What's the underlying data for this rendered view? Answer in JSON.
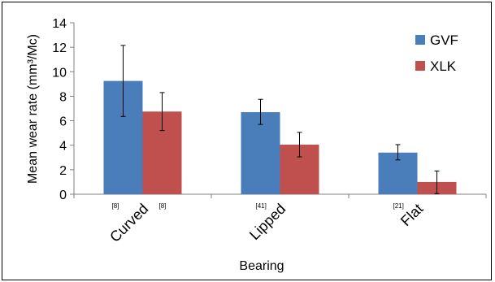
{
  "chart_data": {
    "type": "bar",
    "title": "",
    "xlabel": "Bearing",
    "ylabel": "Mean wear rate (mm³/Mc)",
    "categories": [
      "Curved",
      "Lipped",
      "Flat"
    ],
    "category_counts": [
      [
        "[8]",
        "[8]"
      ],
      [
        "[41]"
      ],
      [
        "[21]"
      ]
    ],
    "ylim": [
      0,
      14
    ],
    "yticks": [
      0,
      2,
      4,
      6,
      8,
      10,
      12,
      14
    ],
    "grid": false,
    "legend_position": "top-right",
    "series": [
      {
        "name": "GVF",
        "color": "#4a7ebb",
        "values": [
          9.25,
          6.7,
          3.4
        ],
        "err_low": [
          6.35,
          5.7,
          2.8
        ],
        "err_high": [
          12.15,
          7.75,
          4.05
        ]
      },
      {
        "name": "XLK",
        "color": "#c0504d",
        "values": [
          6.75,
          4.05,
          1.0
        ],
        "err_low": [
          5.2,
          3.05,
          0.05
        ],
        "err_high": [
          8.3,
          5.05,
          1.9
        ]
      }
    ]
  }
}
